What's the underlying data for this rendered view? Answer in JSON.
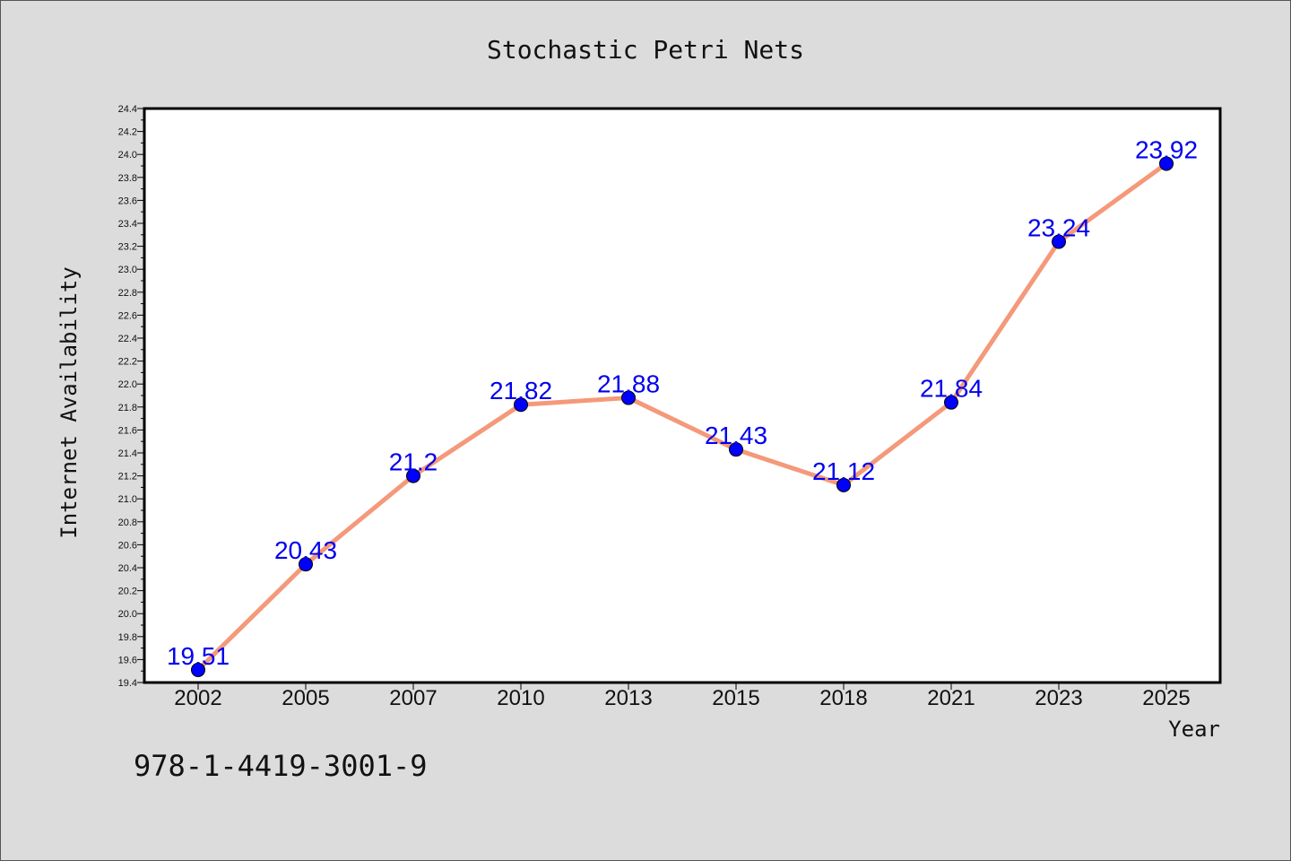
{
  "chart_data": {
    "type": "line",
    "title": "Stochastic Petri Nets",
    "xlabel": "Year",
    "ylabel": "Internet Availability",
    "categories": [
      "2002",
      "2005",
      "2007",
      "2010",
      "2013",
      "2015",
      "2018",
      "2021",
      "2023",
      "2025"
    ],
    "series": [
      {
        "values": [
          19.51,
          20.43,
          21.2,
          21.82,
          21.88,
          21.43,
          21.12,
          21.84,
          23.24,
          23.92
        ]
      }
    ],
    "data_labels": [
      "19.51",
      "20.43",
      "21.2",
      "21.82",
      "21.88",
      "21.43",
      "21.12",
      "21.84",
      "23.24",
      "23.92"
    ],
    "ylim": [
      19.4,
      24.4
    ],
    "ytick_step": 0.2,
    "grid": false,
    "legend": "none",
    "colors": {
      "line": "#f4997a",
      "marker": "#0000ff",
      "data_label": "#0000ee",
      "background": "#dcdcdc",
      "plot_background": "#ffffff"
    }
  },
  "caption": "978-1-4419-3001-9"
}
